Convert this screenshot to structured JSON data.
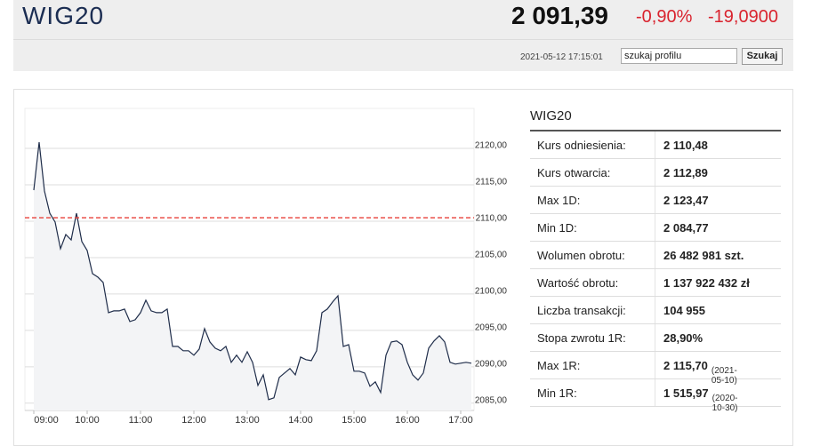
{
  "header": {
    "title": "WIG20",
    "price": "2 091,39",
    "change_pct": "-0,90%",
    "change": "-19,0900",
    "timestamp": "2021-05-12 17:15:01",
    "search_placeholder": "szukaj profilu",
    "search_button": "Szukaj"
  },
  "chart_data": {
    "type": "line",
    "x": [
      9,
      9.1,
      9.2,
      9.3,
      9.4,
      9.5,
      9.6,
      9.7,
      9.8,
      9.9,
      10,
      10.1,
      10.2,
      10.3,
      10.4,
      10.5,
      10.6,
      10.7,
      10.8,
      10.9,
      11,
      11.1,
      11.2,
      11.3,
      11.4,
      11.5,
      11.6,
      11.7,
      11.8,
      11.9,
      12,
      12.1,
      12.2,
      12.3,
      12.4,
      12.5,
      12.6,
      12.7,
      12.8,
      12.9,
      13,
      13.1,
      13.2,
      13.3,
      13.4,
      13.5,
      13.6,
      13.7,
      13.8,
      13.9,
      14,
      14.1,
      14.2,
      14.3,
      14.4,
      14.5,
      14.6,
      14.7,
      14.8,
      14.9,
      15,
      15.1,
      15.2,
      15.3,
      15.4,
      15.5,
      15.6,
      15.7,
      15.8,
      15.9,
      16,
      16.1,
      16.2,
      16.3,
      16.4,
      16.5,
      16.6,
      16.7,
      16.8,
      16.9,
      17,
      17.1,
      17.2
    ],
    "series": [
      {
        "name": "WIG20",
        "color": "#1f2d4a",
        "values": [
          2114.27,
          2120.85,
          2114.15,
          2111.1,
          2109.88,
          2106.22,
          2108.17,
          2107.44,
          2111.1,
          2107.2,
          2105.98,
          2102.8,
          2102.32,
          2101.59,
          2097.44,
          2097.68,
          2097.68,
          2097.93,
          2096.22,
          2096.46,
          2097.44,
          2099.15,
          2097.68,
          2097.44,
          2097.44,
          2097.93,
          2092.8,
          2092.8,
          2092.2,
          2092.2,
          2091.59,
          2092.44,
          2095.24,
          2093.41,
          2092.56,
          2092.2,
          2092.8,
          2090.61,
          2091.59,
          2090.61,
          2092.07,
          2090.61,
          2087.44,
          2088.9,
          2085.49,
          2085.73,
          2088.54,
          2089.15,
          2089.76,
          2088.9,
          2091.34,
          2090.98,
          2090.85,
          2092.2,
          2097.44,
          2097.93,
          2098.9,
          2099.76,
          2092.8,
          2093.05,
          2089.39,
          2089.39,
          2089.15,
          2087.32,
          2087.93,
          2086.46,
          2091.59,
          2093.41,
          2093.54,
          2093.05,
          2090.61,
          2088.9,
          2088.17,
          2089.15,
          2092.56,
          2093.54,
          2094.27,
          2093.41,
          2090.61,
          2090.37,
          2090.49,
          2090.61,
          2090.49
        ]
      }
    ],
    "reference_line": 2110.48,
    "reference_color": "#e8403a",
    "xlim": [
      9,
      17.25
    ],
    "ylim": [
      2084,
      2125.5
    ],
    "xticks": [
      {
        "value": 9,
        "label": "09:00"
      },
      {
        "value": 10,
        "label": "10:00"
      },
      {
        "value": 11,
        "label": "11:00"
      },
      {
        "value": 12,
        "label": "12:00"
      },
      {
        "value": 13,
        "label": "13:00"
      },
      {
        "value": 14,
        "label": "14:00"
      },
      {
        "value": 15,
        "label": "15:00"
      },
      {
        "value": 16,
        "label": "16:00"
      },
      {
        "value": 17,
        "label": "17:00"
      }
    ],
    "yticks": [
      {
        "value": 2085,
        "label": "2085,00"
      },
      {
        "value": 2090,
        "label": "2090,00"
      },
      {
        "value": 2095,
        "label": "2095,00"
      },
      {
        "value": 2100,
        "label": "2100,00"
      },
      {
        "value": 2105,
        "label": "2105,00"
      },
      {
        "value": 2110,
        "label": "2110,00"
      },
      {
        "value": 2115,
        "label": "2115,00"
      },
      {
        "value": 2120,
        "label": "2120,00"
      }
    ],
    "grid": true
  },
  "table": {
    "title": "WIG20",
    "rows": [
      {
        "label": "Kurs odniesienia:",
        "value": "2 110,48"
      },
      {
        "label": "Kurs otwarcia:",
        "value": "2 112,89"
      },
      {
        "label": "Max 1D:",
        "value": "2 123,47"
      },
      {
        "label": "Min 1D:",
        "value": "2 084,77"
      },
      {
        "label": "Wolumen obrotu:",
        "value": "26 482 981 szt."
      },
      {
        "label": "Wartość obrotu:",
        "value": "1 137 922 432 zł"
      },
      {
        "label": "Liczba transakcji:",
        "value": "104 955"
      },
      {
        "label": "Stopa zwrotu 1R:",
        "value": "28,90%"
      },
      {
        "label": "Max 1R:",
        "value": "2 115,70",
        "note": "(2021-05-10)"
      },
      {
        "label": "Min 1R:",
        "value": "1 515,97",
        "note": "(2020-10-30)"
      }
    ]
  }
}
